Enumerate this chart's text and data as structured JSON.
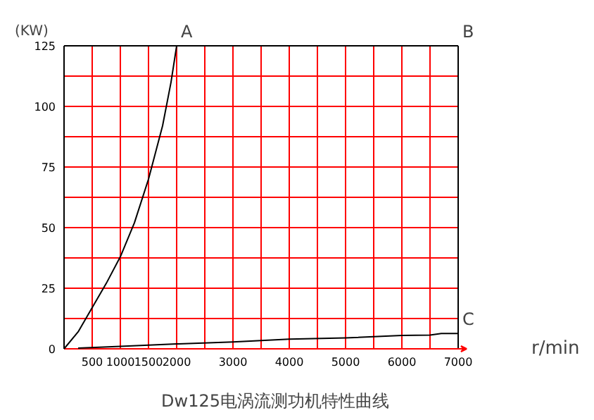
{
  "chart_data": {
    "type": "line",
    "title": "Dw125电涡流测功机特性曲线",
    "xlabel": "r/min",
    "ylabel": "(KW)",
    "xlim": [
      0,
      7000
    ],
    "ylim": [
      0,
      125
    ],
    "xticks": [
      500,
      1000,
      1500,
      2000,
      {
        "value": 2500,
        "label": null
      },
      3000,
      {
        "value": 3500,
        "label": null
      },
      4000,
      {
        "value": 4500,
        "label": null
      },
      5000,
      {
        "value": 5500,
        "label": null
      },
      6000,
      {
        "value": 6500,
        "label": null
      },
      7000
    ],
    "yticks": [
      0,
      {
        "value": 12.5,
        "label": null
      },
      25,
      {
        "value": 37.5,
        "label": null
      },
      50,
      {
        "value": 62.5,
        "label": null
      },
      75,
      {
        "value": 87.5,
        "label": null
      },
      100,
      {
        "value": 112.5,
        "label": null
      },
      125
    ],
    "grid": true,
    "line_style": "solid",
    "marker": "none",
    "series": [
      {
        "color": "#000000",
        "x": [
          0,
          250,
          500,
          750,
          1000,
          1250,
          1500,
          1750,
          1900,
          2000
        ],
        "values": [
          0,
          7,
          17,
          27,
          38,
          52,
          70,
          92,
          110,
          125
        ]
      },
      {
        "color": "#000000",
        "x": [
          250,
          1000,
          2000,
          3000,
          4000,
          5000,
          6000,
          6500,
          6700,
          7000
        ],
        "values": [
          0.3,
          1,
          2,
          2.8,
          4,
          4.5,
          5.5,
          5.7,
          6.3,
          6.3
        ]
      }
    ],
    "annotations": [
      {
        "text": "A",
        "x": 2000,
        "y": 125
      },
      "B",
      {
        "text": "C",
        "x": 7000,
        "y": 6.3
      }
    ]
  }
}
